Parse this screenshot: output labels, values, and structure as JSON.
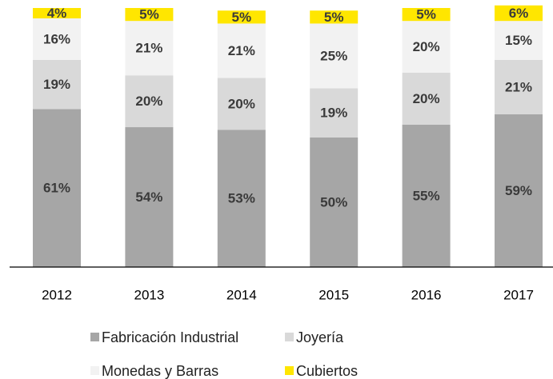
{
  "chart_data": {
    "type": "stacked_bar",
    "categories": [
      "2012",
      "2013",
      "2014",
      "2015",
      "2016",
      "2017"
    ],
    "ylim": [
      0,
      100
    ],
    "series": [
      {
        "name": "Fabricación Industrial",
        "color": "#a6a6a6",
        "values": [
          61,
          54,
          53,
          50,
          55,
          59
        ],
        "value_labels": [
          "61%",
          "54%",
          "53%",
          "50%",
          "55%",
          "59%"
        ]
      },
      {
        "name": "Joyería",
        "color": "#d9d9d9",
        "values": [
          19,
          20,
          20,
          19,
          20,
          21
        ],
        "value_labels": [
          "19%",
          "20%",
          "20%",
          "19%",
          "20%",
          "21%"
        ]
      },
      {
        "name": "Monedas y Barras",
        "color": "#f2f2f2",
        "values": [
          16,
          21,
          21,
          25,
          20,
          15
        ],
        "value_labels": [
          "16%",
          "21%",
          "21%",
          "25%",
          "20%",
          "15%"
        ]
      },
      {
        "name": "Cubiertos",
        "color": "#ffe600",
        "values": [
          4,
          5,
          5,
          5,
          5,
          6
        ],
        "value_labels": [
          "4%",
          "5%",
          "5%",
          "5%",
          "5%",
          "6%"
        ]
      }
    ]
  }
}
